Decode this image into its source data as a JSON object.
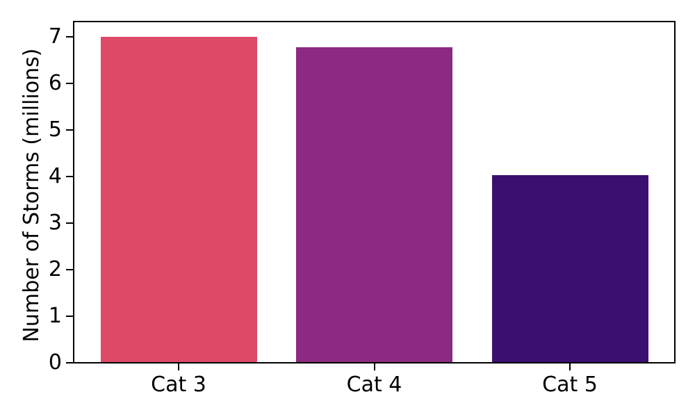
{
  "figure": {
    "background_color": "#ffffff",
    "text_color": "#000000",
    "spine_color": "#000000"
  },
  "chart_data": {
    "type": "bar",
    "title": "",
    "xlabel": "",
    "ylabel": "Number of Storms (millions)",
    "categories": [
      "Cat 3",
      "Cat 4",
      "Cat 5"
    ],
    "values": [
      7.0,
      6.78,
      4.03
    ],
    "bar_colors": [
      "#de4968",
      "#8c2981",
      "#3b0f70"
    ],
    "yticks": [
      "0",
      "1",
      "2",
      "3",
      "4",
      "5",
      "6",
      "7"
    ],
    "ylim": [
      0,
      7.35
    ],
    "grid": false,
    "legend": null,
    "bar_width_fraction": 0.8
  }
}
